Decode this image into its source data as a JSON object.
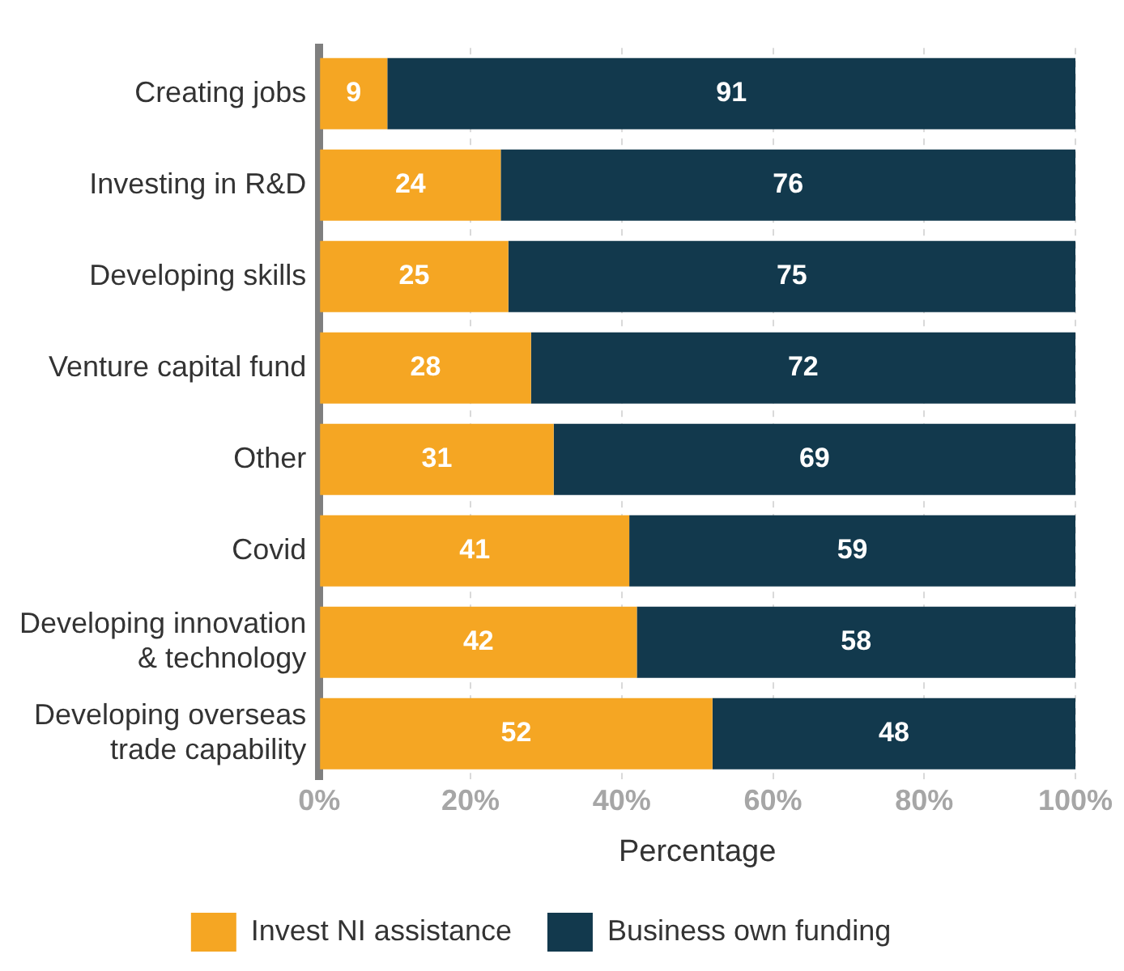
{
  "chart_data": {
    "type": "bar",
    "orientation": "horizontal",
    "stacked": true,
    "xlabel": "Percentage",
    "categories": [
      "Creating jobs",
      "Investing in R&D",
      "Developing skills",
      "Venture capital fund",
      "Other",
      "Covid",
      "Developing innovation & technology",
      "Developing overseas trade capability"
    ],
    "series": [
      {
        "name": "Invest NI assistance",
        "color": "#f5a623",
        "values": [
          9,
          24,
          25,
          28,
          31,
          41,
          42,
          52
        ]
      },
      {
        "name": "Business own funding",
        "color": "#12394d",
        "values": [
          91,
          76,
          75,
          72,
          69,
          59,
          58,
          48
        ]
      }
    ],
    "xlim": [
      0,
      100
    ],
    "xticks": [
      {
        "value": 0,
        "label": "0%"
      },
      {
        "value": 20,
        "label": "20%"
      },
      {
        "value": 40,
        "label": "40%"
      },
      {
        "value": 60,
        "label": "60%"
      },
      {
        "value": 80,
        "label": "80%"
      },
      {
        "value": 100,
        "label": "100%"
      }
    ],
    "grid": "x",
    "legend": "bottom",
    "data_labels": true
  }
}
